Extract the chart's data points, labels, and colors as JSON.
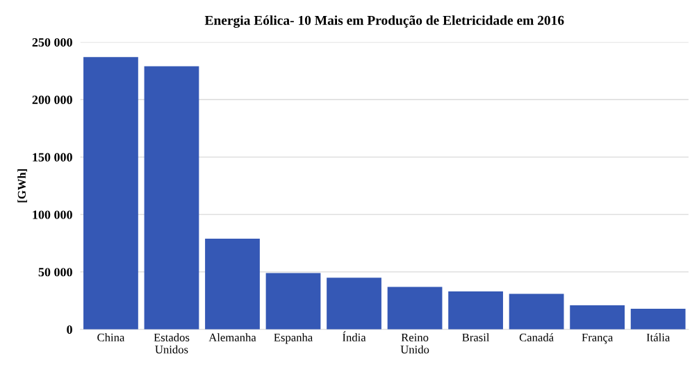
{
  "chart_data": {
    "type": "bar",
    "title": "Energia Eólica- 10 Mais em Produção de Eletricidade em 2016",
    "ylabel": "[GWh]",
    "categories": [
      "China",
      "Estados\nUnidos",
      "Alemanha",
      "Espanha",
      "Índia",
      "Reino\nUnido",
      "Brasil",
      "Canadá",
      "França",
      "Itália"
    ],
    "values": [
      237000,
      229000,
      79000,
      49000,
      45000,
      37000,
      33000,
      31000,
      21000,
      18000
    ],
    "color": "#3558b5",
    "ylim": [
      0,
      250000
    ],
    "yticks": [
      0,
      {
        "value": 50000,
        "label": "50 000"
      },
      {
        "value": 100000,
        "label": "100 000"
      },
      {
        "value": 150000,
        "label": "150 000"
      },
      {
        "value": 200000,
        "label": "200 000"
      },
      {
        "value": 250000,
        "label": "250 000"
      }
    ],
    "grid": "y"
  }
}
